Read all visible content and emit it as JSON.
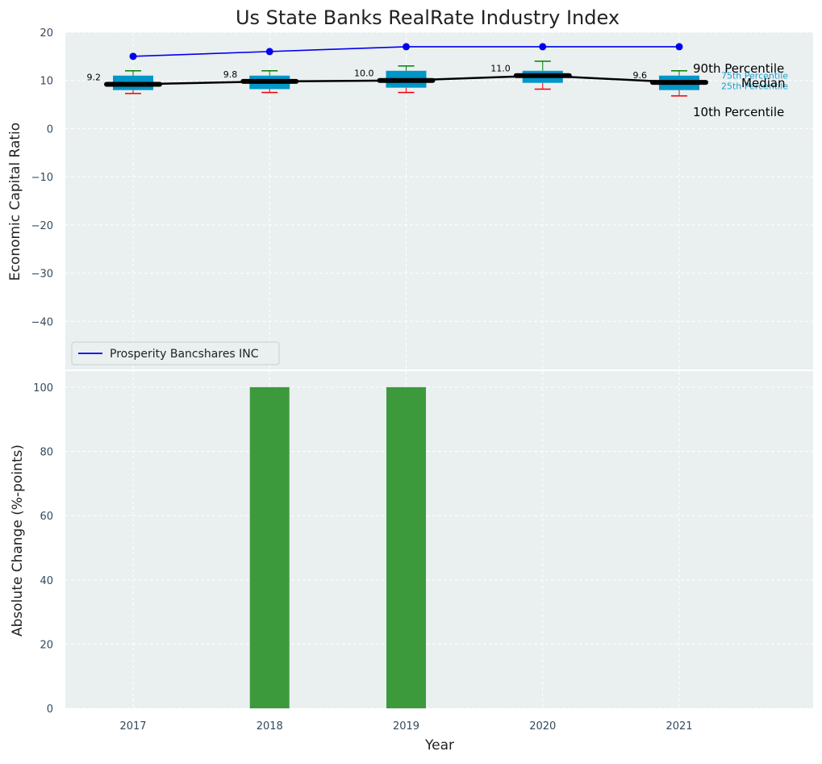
{
  "title": "Us State Banks RealRate Industry Index",
  "colors": {
    "panel_bg": "#eaeff0",
    "grid": "#ffffff",
    "company_line": "#0000ee",
    "median_line": "#000000",
    "box_fill": "#0096c8",
    "whisker_top": "#008000",
    "whisker_bottom": "#ee0000",
    "bar": "#3c9a3c",
    "quartile_label": "#1a9fcc"
  },
  "chart_data": [
    {
      "type": "box",
      "title": "Us State Banks RealRate Industry Index",
      "ylabel": "Economic Capital Ratio",
      "xlabel": "",
      "ylim": [
        -50,
        20
      ],
      "yticks": [
        20,
        10,
        0,
        -10,
        -20,
        -30,
        -40
      ],
      "ytick_labels": [
        "20",
        "10",
        "0",
        "−10",
        "−20",
        "−30",
        "−40"
      ],
      "grid": true,
      "legend_position": "lower-left",
      "categories": [
        "2017",
        "2018",
        "2019",
        "2020",
        "2021"
      ],
      "boxes": {
        "p10": [
          7.3,
          7.5,
          7.5,
          8.2,
          6.8
        ],
        "p25": [
          8.0,
          8.2,
          8.5,
          9.5,
          8.0
        ],
        "median": [
          9.2,
          9.8,
          10.0,
          11.0,
          9.6
        ],
        "p75": [
          11.0,
          11.0,
          12.0,
          12.0,
          11.0
        ],
        "p90": [
          12.0,
          12.0,
          13.0,
          14.0,
          12.0
        ]
      },
      "median_labels": [
        "9.2",
        "9.8",
        "10.0",
        "11.0",
        "9.6"
      ],
      "series": [
        {
          "name": "Prosperity Bancshares INC",
          "values": [
            15,
            16,
            17,
            17,
            17
          ]
        }
      ],
      "annotations": {
        "p90": "90th Percentile",
        "p75": "75th Percentile",
        "median": "Median",
        "p25": "25th Percentile",
        "p10": "10th Percentile"
      }
    },
    {
      "type": "bar",
      "ylabel": "Absolute Change (%-points)",
      "xlabel": "Year",
      "ylim": [
        0,
        105
      ],
      "yticks": [
        0,
        20,
        40,
        60,
        80,
        100
      ],
      "ytick_labels": [
        "0",
        "20",
        "40",
        "60",
        "80",
        "100"
      ],
      "grid": true,
      "categories": [
        "2017",
        "2018",
        "2019",
        "2020",
        "2021"
      ],
      "values": [
        0,
        100,
        100,
        0,
        0
      ]
    }
  ]
}
